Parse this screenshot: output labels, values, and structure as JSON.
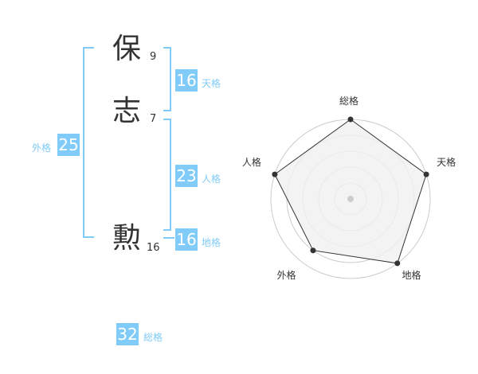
{
  "name": {
    "chars": [
      {
        "char": "保",
        "strokes": "9"
      },
      {
        "char": "志",
        "strokes": "7"
      },
      {
        "char": "勲",
        "strokes": "16"
      }
    ]
  },
  "fortunes": {
    "tenkaku": {
      "label": "天格",
      "value": "16"
    },
    "jinkaku": {
      "label": "人格",
      "value": "23"
    },
    "chikaku": {
      "label": "地格",
      "value": "16"
    },
    "gaikaku": {
      "label": "外格",
      "value": "25"
    },
    "soukaku": {
      "label": "総格",
      "value": "32"
    }
  },
  "colors": {
    "accent": "#80cbf7",
    "text": "#333333",
    "radar_fill": "#f0f0f0",
    "radar_line": "#333333",
    "grid": "#cccccc"
  },
  "chart_data": {
    "type": "radar",
    "categories": [
      "総格",
      "天格",
      "地格",
      "外格",
      "人格"
    ],
    "values": [
      5,
      5,
      5,
      4,
      5
    ],
    "range": [
      0,
      5
    ],
    "rings": 5
  }
}
